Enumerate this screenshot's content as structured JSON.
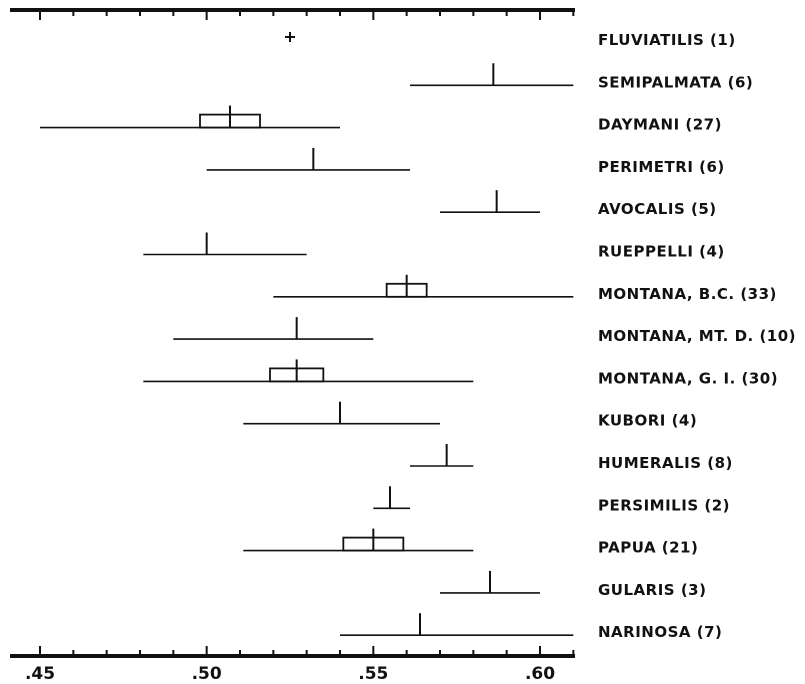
{
  "chart_data": {
    "type": "range",
    "x_ticks": [
      ".45",
      ".50",
      ".55",
      ".60"
    ],
    "x_tick_values": [
      0.45,
      0.5,
      0.55,
      0.6
    ],
    "xlim": [
      0.44,
      0.61
    ],
    "rows": [
      {
        "label": "FLUVIATILIS (1)",
        "mean": 0.525,
        "single": true
      },
      {
        "label": "SEMIPALMATA (6)",
        "min": 0.561,
        "max": 0.61,
        "mean": 0.586
      },
      {
        "label": "DAYMANI (27)",
        "min": 0.45,
        "max": 0.54,
        "mean": 0.507,
        "ci": [
          0.498,
          0.516
        ]
      },
      {
        "label": "PERIMETRI (6)",
        "min": 0.5,
        "max": 0.561,
        "mean": 0.532
      },
      {
        "label": "AVOCALIS (5)",
        "min": 0.57,
        "max": 0.6,
        "mean": 0.587
      },
      {
        "label": "RUEPPELLI (4)",
        "min": 0.481,
        "max": 0.53,
        "mean": 0.5
      },
      {
        "label": "MONTANA, B.C. (33)",
        "min": 0.52,
        "max": 0.61,
        "mean": 0.56,
        "ci": [
          0.554,
          0.566
        ]
      },
      {
        "label": "MONTANA, MT. D. (10)",
        "min": 0.49,
        "max": 0.55,
        "mean": 0.527
      },
      {
        "label": "MONTANA, G. I. (30)",
        "min": 0.481,
        "max": 0.58,
        "mean": 0.527,
        "ci": [
          0.519,
          0.535
        ]
      },
      {
        "label": "KUBORI (4)",
        "min": 0.511,
        "max": 0.57,
        "mean": 0.54
      },
      {
        "label": "HUMERALIS (8)",
        "min": 0.561,
        "max": 0.58,
        "mean": 0.572
      },
      {
        "label": "PERSIMILIS (2)",
        "min": 0.55,
        "max": 0.561,
        "mean": 0.555
      },
      {
        "label": "PAPUA (21)",
        "min": 0.511,
        "max": 0.58,
        "mean": 0.55,
        "ci": [
          0.541,
          0.559
        ]
      },
      {
        "label": "GULARIS (3)",
        "min": 0.57,
        "max": 0.6,
        "mean": 0.585
      },
      {
        "label": "NARINOSA (7)",
        "min": 0.54,
        "max": 0.61,
        "mean": 0.564
      }
    ]
  }
}
